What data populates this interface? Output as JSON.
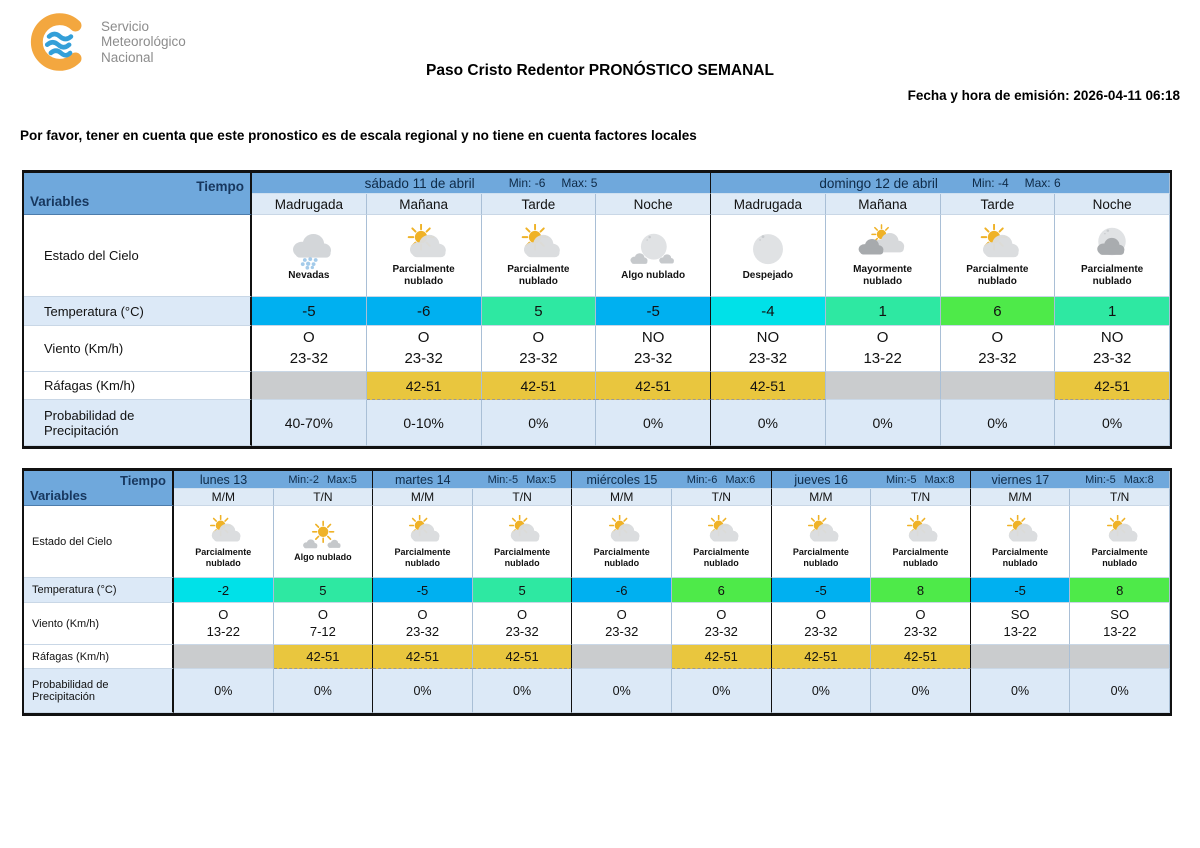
{
  "logo": {
    "line1": "Servicio",
    "line2": "Meteorológico",
    "line3": "Nacional"
  },
  "header": {
    "title": "Paso Cristo Redentor PRONÓSTICO SEMANAL",
    "emission": "Fecha y hora de emisión: 2026-04-11 06:18",
    "disclaimer": "Por favor, tener en cuenta que este pronostico es de escala regional y no tiene en cuenta factores locales"
  },
  "labels": {
    "tiempo": "Tiempo",
    "variables": "Variables",
    "estado": "Estado del Cielo",
    "temperatura": "Temperatura (°C)",
    "viento": "Viento (Km/h)",
    "rafagas": "Ráfagas (Km/h)",
    "probabilidad": "Probabilidad de\nPrecipitación"
  },
  "colors": {
    "header_blue": "#6FA8DC",
    "subheader_blue": "#DEEAF6",
    "light_row_blue": "#DCE9F7",
    "gust_yellow": "#E9C63E",
    "gust_empty_gray": "#CACCCE",
    "temp_scale": {
      "blue": "#00B0F0",
      "cyan": "#00E1E8",
      "spring": "#2EE8A2",
      "green": "#4EEA49"
    }
  },
  "table1": {
    "periods_per_day": 4,
    "days": [
      {
        "name": "sábado 11 de abril",
        "min": "Min: -6",
        "max": "Max: 5",
        "cols": [
          {
            "period": "Madrugada",
            "icon": "snow-cloud",
            "sky": "Nevadas",
            "temp": "-5",
            "temp_color": "blue",
            "wind_dir": "O",
            "wind_range": "23-32",
            "gust": "",
            "precip": "40-70%"
          },
          {
            "period": "Mañana",
            "icon": "partly-cloudy-day",
            "sky": "Parcialmente nublado",
            "temp": "-6",
            "temp_color": "blue",
            "wind_dir": "O",
            "wind_range": "23-32",
            "gust": "42-51",
            "precip": "0-10%"
          },
          {
            "period": "Tarde",
            "icon": "partly-cloudy-day",
            "sky": "Parcialmente nublado",
            "temp": "5",
            "temp_color": "spring",
            "wind_dir": "O",
            "wind_range": "23-32",
            "gust": "42-51",
            "precip": "0%"
          },
          {
            "period": "Noche",
            "icon": "few-clouds-night",
            "sky": "Algo nublado",
            "temp": "-5",
            "temp_color": "blue",
            "wind_dir": "NO",
            "wind_range": "23-32",
            "gust": "42-51",
            "precip": "0%"
          }
        ]
      },
      {
        "name": "domingo 12 de abril",
        "min": "Min: -4",
        "max": "Max: 6",
        "cols": [
          {
            "period": "Madrugada",
            "icon": "clear-night",
            "sky": "Despejado",
            "temp": "-4",
            "temp_color": "cyan",
            "wind_dir": "NO",
            "wind_range": "23-32",
            "gust": "42-51",
            "precip": "0%"
          },
          {
            "period": "Mañana",
            "icon": "mostly-cloudy-day",
            "sky": "Mayormente nublado",
            "temp": "1",
            "temp_color": "spring",
            "wind_dir": "O",
            "wind_range": "13-22",
            "gust": "",
            "precip": "0%"
          },
          {
            "period": "Tarde",
            "icon": "partly-cloudy-day",
            "sky": "Parcialmente nublado",
            "temp": "6",
            "temp_color": "green",
            "wind_dir": "O",
            "wind_range": "23-32",
            "gust": "",
            "precip": "0%"
          },
          {
            "period": "Noche",
            "icon": "partly-cloudy-night",
            "sky": "Parcialmente nublado",
            "temp": "1",
            "temp_color": "spring",
            "wind_dir": "NO",
            "wind_range": "23-32",
            "gust": "42-51",
            "precip": "0%"
          }
        ]
      }
    ]
  },
  "table2": {
    "periods_per_day": 2,
    "days": [
      {
        "name": "lunes 13",
        "min": "Min:-2",
        "max": "Max:5",
        "cols": [
          {
            "period": "M/M",
            "icon": "partly-cloudy-day",
            "sky": "Parcialmente nublado",
            "temp": "-2",
            "temp_color": "cyan",
            "wind_dir": "O",
            "wind_range": "13-22",
            "gust": "",
            "precip": "0%"
          },
          {
            "period": "T/N",
            "icon": "few-clouds-day",
            "sky": "Algo nublado",
            "temp": "5",
            "temp_color": "spring",
            "wind_dir": "O",
            "wind_range": "7-12",
            "gust": "42-51",
            "precip": "0%"
          }
        ]
      },
      {
        "name": "martes 14",
        "min": "Min:-5",
        "max": "Max:5",
        "cols": [
          {
            "period": "M/M",
            "icon": "partly-cloudy-day",
            "sky": "Parcialmente nublado",
            "temp": "-5",
            "temp_color": "blue",
            "wind_dir": "O",
            "wind_range": "23-32",
            "gust": "42-51",
            "precip": "0%"
          },
          {
            "period": "T/N",
            "icon": "partly-cloudy-day",
            "sky": "Parcialmente nublado",
            "temp": "5",
            "temp_color": "spring",
            "wind_dir": "O",
            "wind_range": "23-32",
            "gust": "42-51",
            "precip": "0%"
          }
        ]
      },
      {
        "name": "miércoles 15",
        "min": "Min:-6",
        "max": "Max:6",
        "cols": [
          {
            "period": "M/M",
            "icon": "partly-cloudy-day",
            "sky": "Parcialmente nublado",
            "temp": "-6",
            "temp_color": "blue",
            "wind_dir": "O",
            "wind_range": "23-32",
            "gust": "",
            "precip": "0%"
          },
          {
            "period": "T/N",
            "icon": "partly-cloudy-day",
            "sky": "Parcialmente nublado",
            "temp": "6",
            "temp_color": "green",
            "wind_dir": "O",
            "wind_range": "23-32",
            "gust": "42-51",
            "precip": "0%"
          }
        ]
      },
      {
        "name": "jueves 16",
        "min": "Min:-5",
        "max": "Max:8",
        "cols": [
          {
            "period": "M/M",
            "icon": "partly-cloudy-day",
            "sky": "Parcialmente nublado",
            "temp": "-5",
            "temp_color": "blue",
            "wind_dir": "O",
            "wind_range": "23-32",
            "gust": "42-51",
            "precip": "0%"
          },
          {
            "period": "T/N",
            "icon": "partly-cloudy-day",
            "sky": "Parcialmente nublado",
            "temp": "8",
            "temp_color": "green",
            "wind_dir": "O",
            "wind_range": "23-32",
            "gust": "42-51",
            "precip": "0%"
          }
        ]
      },
      {
        "name": "viernes 17",
        "min": "Min:-5",
        "max": "Max:8",
        "cols": [
          {
            "period": "M/M",
            "icon": "partly-cloudy-day",
            "sky": "Parcialmente nublado",
            "temp": "-5",
            "temp_color": "blue",
            "wind_dir": "SO",
            "wind_range": "13-22",
            "gust": "",
            "precip": "0%"
          },
          {
            "period": "T/N",
            "icon": "partly-cloudy-day",
            "sky": "Parcialmente nublado",
            "temp": "8",
            "temp_color": "green",
            "wind_dir": "SO",
            "wind_range": "13-22",
            "gust": "",
            "precip": "0%"
          }
        ]
      }
    ]
  }
}
